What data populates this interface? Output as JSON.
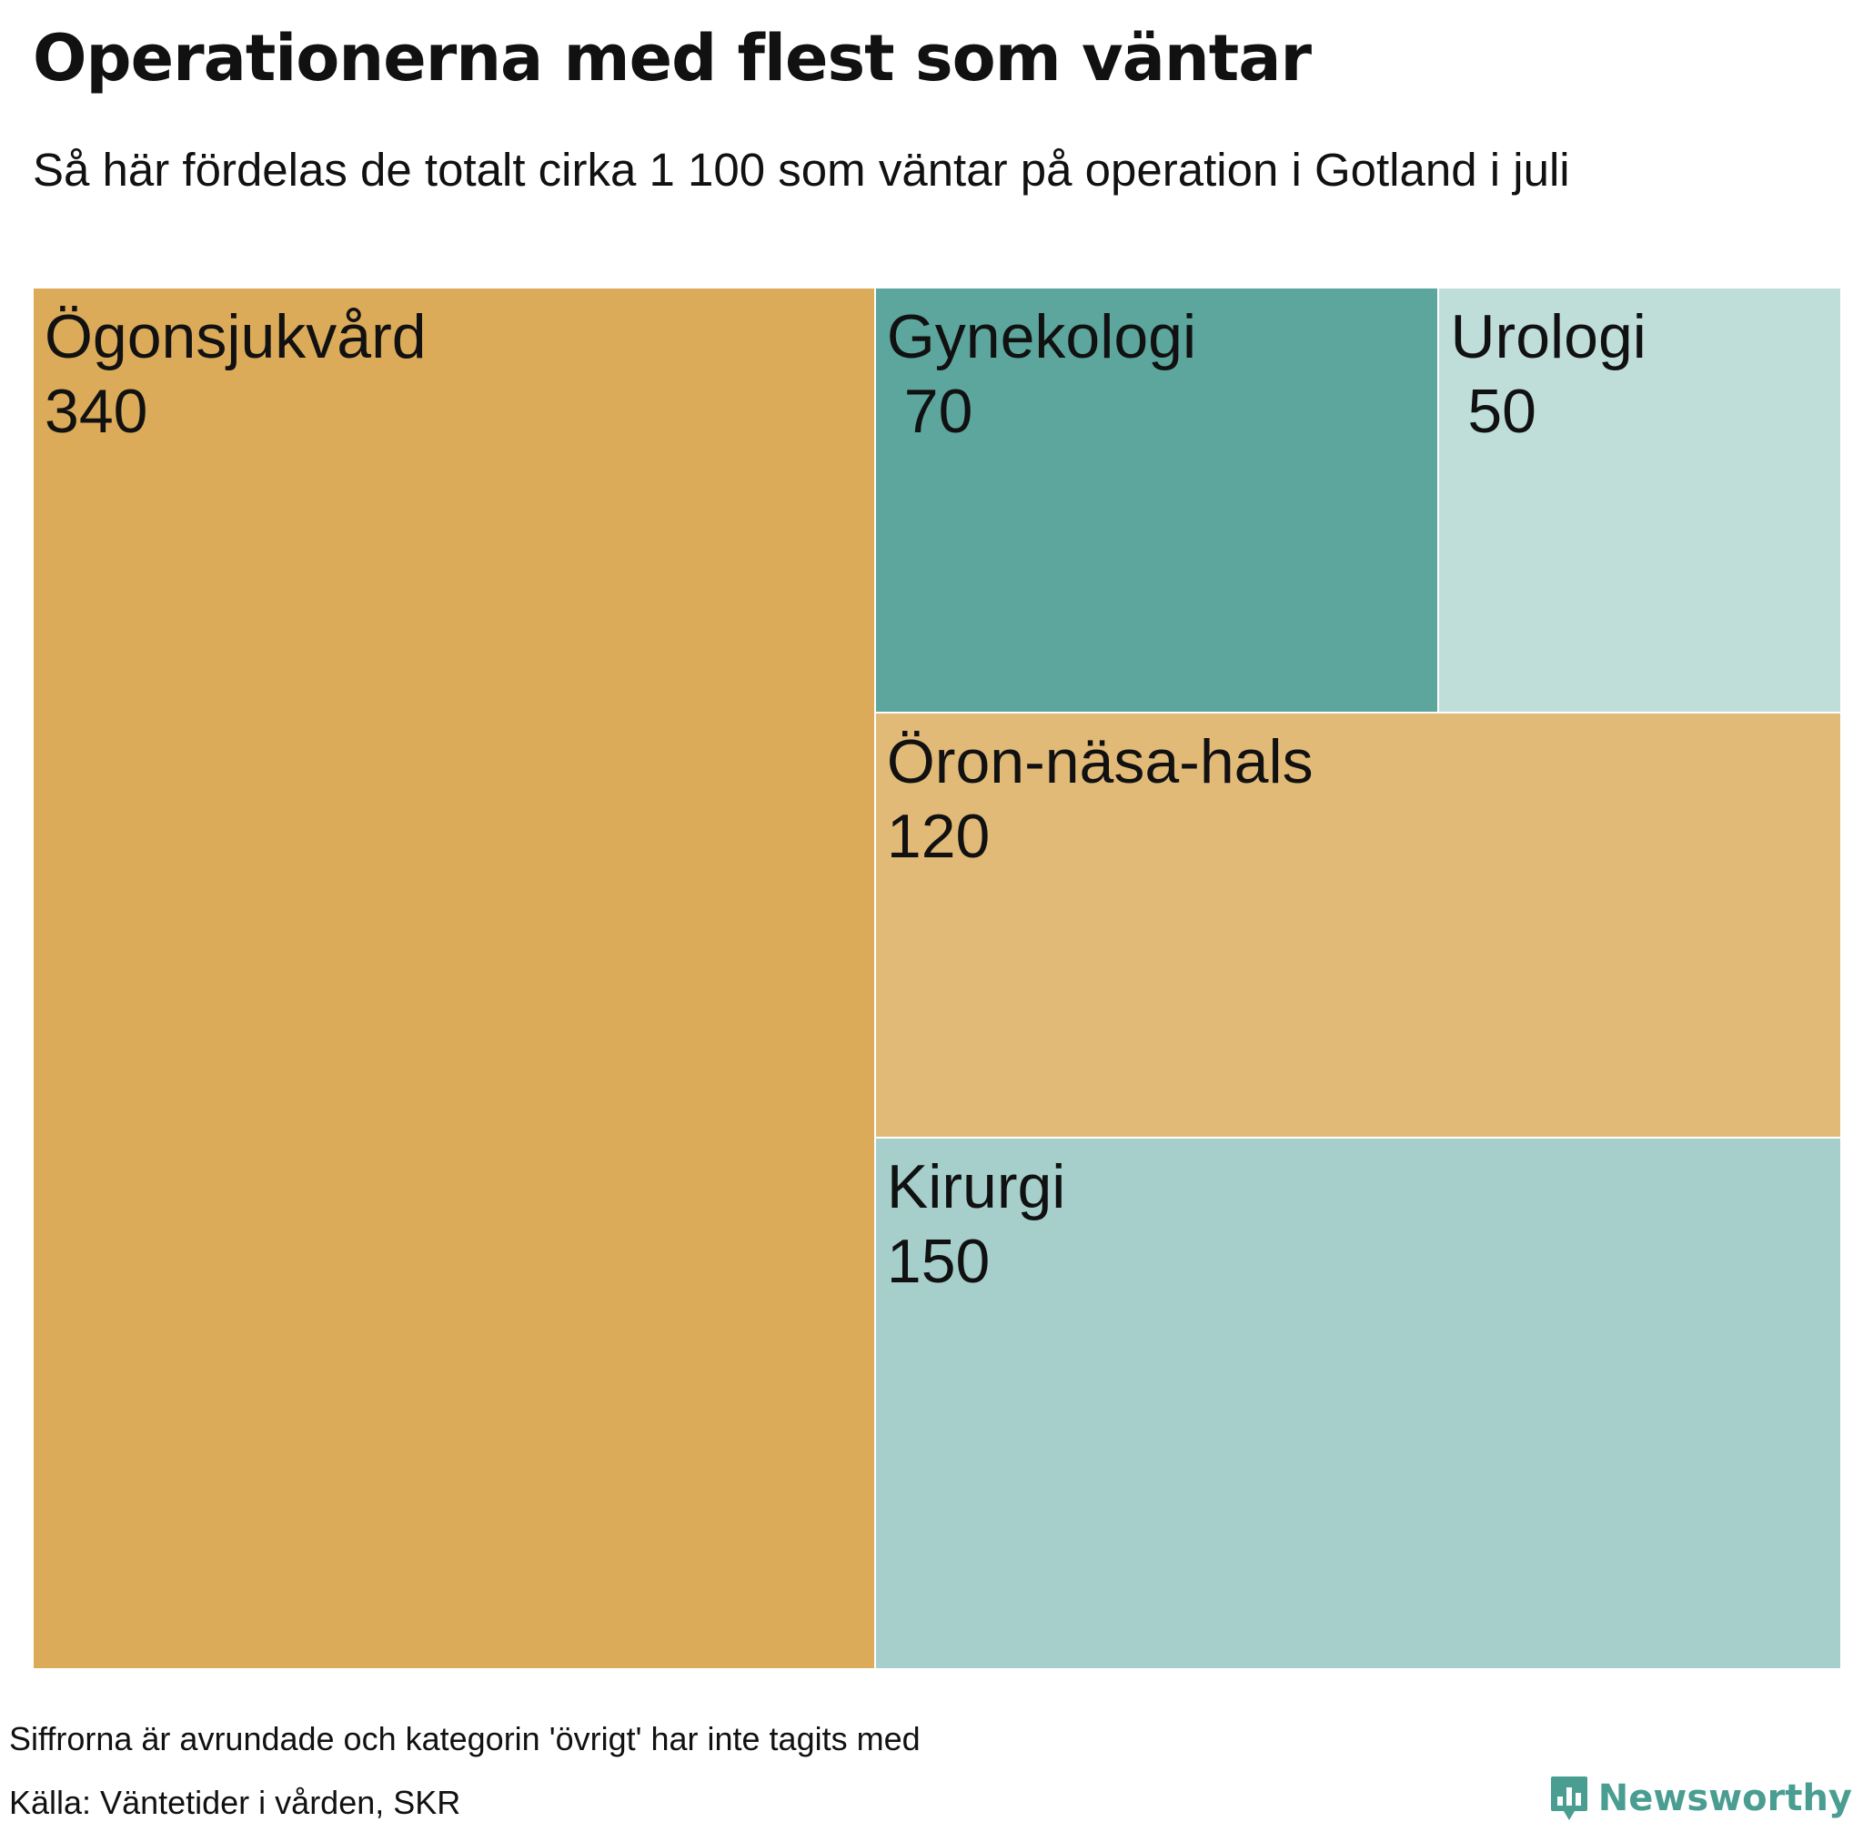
{
  "header": {
    "title": "Operationerna med flest som väntar",
    "subtitle": "Så här fördelas de totalt cirka 1 100 som väntar på operation i Gotland i juli"
  },
  "chart_data": {
    "type": "treemap",
    "title": "Operationerna med flest som väntar",
    "subtitle": "Så här fördelas de totalt cirka 1 100 som väntar på operation i Gotland i juli",
    "items": [
      {
        "name": "Ögonsjukvård",
        "value": 340,
        "value_label": "340",
        "color": "#dbab59"
      },
      {
        "name": "Gynekologi",
        "value": 70,
        "value_label": " 70",
        "color": "#5ca69d"
      },
      {
        "name": "Urologi",
        "value": 50,
        "value_label": " 50",
        "color": "#bfdeda"
      },
      {
        "name": "Öron-näsa-hals",
        "value": 120,
        "value_label": "120",
        "color": "#e2ba78"
      },
      {
        "name": "Kirurgi",
        "value": 150,
        "value_label": "150",
        "color": "#a6cfcb"
      }
    ]
  },
  "footer": {
    "note": "Siffrorna är avrundade och kategorin 'övrigt' har inte tagits med",
    "source": "Källa: Väntetider i vården, SKR",
    "brand": "Newsworthy",
    "brand_color": "#4a9d91"
  }
}
